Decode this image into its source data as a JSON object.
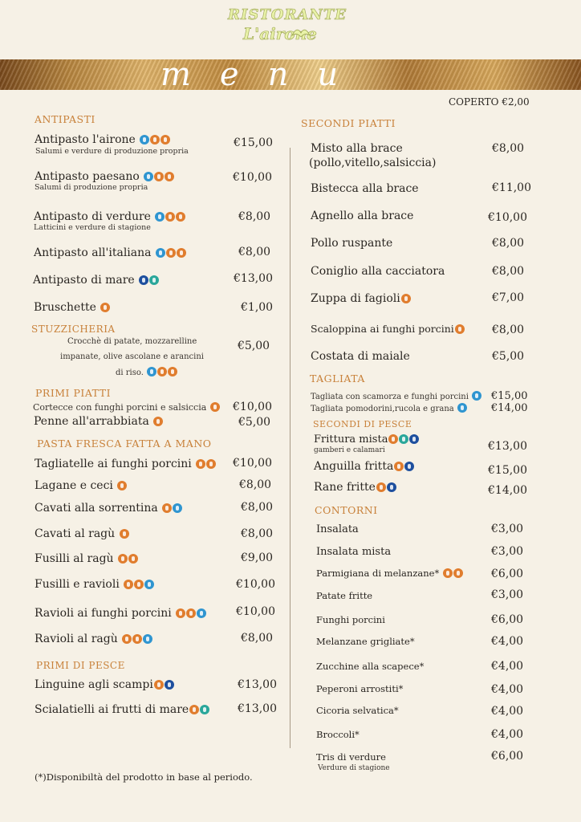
{
  "header": {
    "logo_line1": "RISTORANTE",
    "logo_line2": "L'airone",
    "band_title": "menu",
    "coperto": "COPERTO €2,00"
  },
  "colors": {
    "section_heading": "#c8813a",
    "icon_orange": "#e07d2e",
    "icon_blue": "#2f95d0",
    "icon_teal": "#2aa79a",
    "icon_navy": "#1d4f9e",
    "gold_band": "#c08a3e"
  },
  "left": {
    "antipasti": {
      "title": "ANTIPASTI",
      "items": [
        {
          "name": "Antipasto l'airone",
          "desc": "Salumi e verdure di produzione propria",
          "price": "€15,00",
          "icons": [
            "milk-icon",
            "gluten-icon",
            "egg-icon"
          ]
        },
        {
          "name": "Antipasto paesano",
          "desc": "Salumi di produzione propria",
          "price": "€10,00",
          "icons": [
            "milk-icon",
            "gluten-icon",
            "egg-icon"
          ]
        },
        {
          "name": "Antipasto di verdure",
          "desc": "Latticini e verdure di stagione",
          "price": "€8,00",
          "icons": [
            "milk-icon",
            "gluten-icon",
            "egg-icon"
          ]
        },
        {
          "name": "Antipasto all'italiana",
          "price": "€8,00",
          "icons": [
            "milk-icon",
            "gluten-icon",
            "egg-icon"
          ]
        },
        {
          "name": "Antipasto di mare",
          "price": "€13,00",
          "icons": [
            "crustacean-icon",
            "mollusc-icon"
          ]
        },
        {
          "name": "Bruschette",
          "price": "€1,00",
          "icons": [
            "gluten-icon"
          ]
        }
      ]
    },
    "stuzzicheria": {
      "title": "STUZZICHERIA",
      "desc_line1": "Crocchè di patate, mozzarelline",
      "desc_line2": "impanate, olive ascolane e arancini",
      "desc_line3": "di riso.",
      "price": "€5,00",
      "icons": [
        "milk-icon",
        "gluten-icon",
        "egg-icon"
      ]
    },
    "primi": {
      "title": "PRIMI PIATTI",
      "items": [
        {
          "name": "Cortecce con  funghi porcini e salsiccia",
          "price": "€10,00",
          "icons": [
            "gluten-icon"
          ]
        },
        {
          "name": "Penne all'arrabbiata",
          "price": "€5,00",
          "icons": [
            "gluten-icon"
          ]
        }
      ]
    },
    "pasta_fresca": {
      "title": "PASTA FRESCA FATTA A MANO",
      "items": [
        {
          "name": "Tagliatelle ai funghi porcini",
          "price": "€10,00",
          "icons": [
            "gluten-icon",
            "egg-icon"
          ]
        },
        {
          "name": "Lagane e ceci",
          "price": "€8,00",
          "icons": [
            "gluten-icon"
          ]
        },
        {
          "name": "Cavati alla sorrentina",
          "price": "€8,00",
          "icons": [
            "gluten-icon",
            "milk-icon"
          ]
        },
        {
          "name": "Cavati al ragù",
          "price": "€8,00",
          "icons": [
            "gluten-icon"
          ]
        },
        {
          "name": "Fusilli al ragù",
          "price": "€9,00",
          "icons": [
            "gluten-icon",
            "egg-icon"
          ]
        },
        {
          "name": "Fusilli e ravioli",
          "price": "€10,00",
          "icons": [
            "gluten-icon",
            "egg-icon",
            "milk-icon"
          ]
        },
        {
          "name": "Ravioli ai funghi porcini",
          "price": "€10,00",
          "icons": [
            "gluten-icon",
            "egg-icon",
            "milk-icon"
          ]
        },
        {
          "name": "Ravioli al ragù",
          "price": "€8,00",
          "icons": [
            "gluten-icon",
            "egg-icon",
            "milk-icon"
          ]
        }
      ]
    },
    "primi_pesce": {
      "title": "PRIMI DI PESCE",
      "items": [
        {
          "name": "Linguine agli scampi",
          "price": "€13,00",
          "icons": [
            "gluten-icon",
            "crustacean-icon"
          ]
        },
        {
          "name": "Scialatielli ai frutti di mare",
          "price": "€13,00",
          "icons": [
            "gluten-icon",
            "mollusc-icon"
          ]
        }
      ]
    },
    "footnote": "(*)Disponibiltà del prodotto in base al periodo."
  },
  "right": {
    "secondi": {
      "title": "SECONDI PIATTI",
      "items": [
        {
          "name": "Misto alla brace",
          "desc": "(pollo,vitello,salsiccia)",
          "price": "€8,00"
        },
        {
          "name": "Bistecca alla brace",
          "price": "€11,00"
        },
        {
          "name": "Agnello alla brace",
          "price": "€10,00"
        },
        {
          "name": "Pollo ruspante",
          "price": "€8,00"
        },
        {
          "name": "Coniglio alla cacciatora",
          "price": "€8,00"
        },
        {
          "name": "Zuppa di fagioli",
          "price": "€7,00",
          "icons": [
            "gluten-icon"
          ]
        },
        {
          "name": "Scaloppina ai funghi porcini",
          "price": "€8,00",
          "icons": [
            "gluten-icon"
          ]
        },
        {
          "name": "Costata di maiale",
          "price": "€5,00"
        }
      ]
    },
    "tagliata": {
      "title": "TAGLIATA",
      "items": [
        {
          "name": "Tagliata con scamorza e funghi porcini",
          "price": "€15,00",
          "icons": [
            "milk-icon"
          ]
        },
        {
          "name": "Tagliata pomodorini,rucola e grana",
          "price": "€14,00",
          "icons": [
            "milk-icon"
          ]
        }
      ]
    },
    "secondi_pesce": {
      "title": "SECONDI DI PESCE",
      "items": [
        {
          "name": "Frittura mista",
          "desc": "gamberi e calamari",
          "price": "€13,00",
          "icons": [
            "gluten-icon",
            "mollusc-icon",
            "crustacean-icon"
          ]
        },
        {
          "name": "Anguilla fritta",
          "price": "€15,00",
          "icons": [
            "gluten-icon",
            "fish-icon"
          ]
        },
        {
          "name": "Rane fritte",
          "price": "€14,00",
          "icons": [
            "gluten-icon",
            "fish-icon"
          ]
        }
      ]
    },
    "contorni": {
      "title": "CONTORNI",
      "items": [
        {
          "name": "Insalata",
          "price": "€3,00"
        },
        {
          "name": "Insalata mista",
          "price": "€3,00"
        },
        {
          "name": "Parmigiana di melanzane*",
          "price": "€6,00",
          "icons": [
            "gluten-icon",
            "egg-icon"
          ]
        },
        {
          "name": "Patate fritte",
          "price": "€3,00"
        },
        {
          "name": "Funghi porcini",
          "price": "€6,00"
        },
        {
          "name": "Melanzane grigliate*",
          "price": "€4,00"
        },
        {
          "name": "Zucchine alla scapece*",
          "price": "€4,00"
        },
        {
          "name": "Peperoni arrostiti*",
          "price": "€4,00"
        },
        {
          "name": "Cicoria selvatica*",
          "price": "€4,00"
        },
        {
          "name": "Broccoli*",
          "price": "€4,00"
        },
        {
          "name": "Tris di verdure",
          "desc": "Verdure di stagione",
          "price": "€6,00"
        }
      ]
    }
  }
}
